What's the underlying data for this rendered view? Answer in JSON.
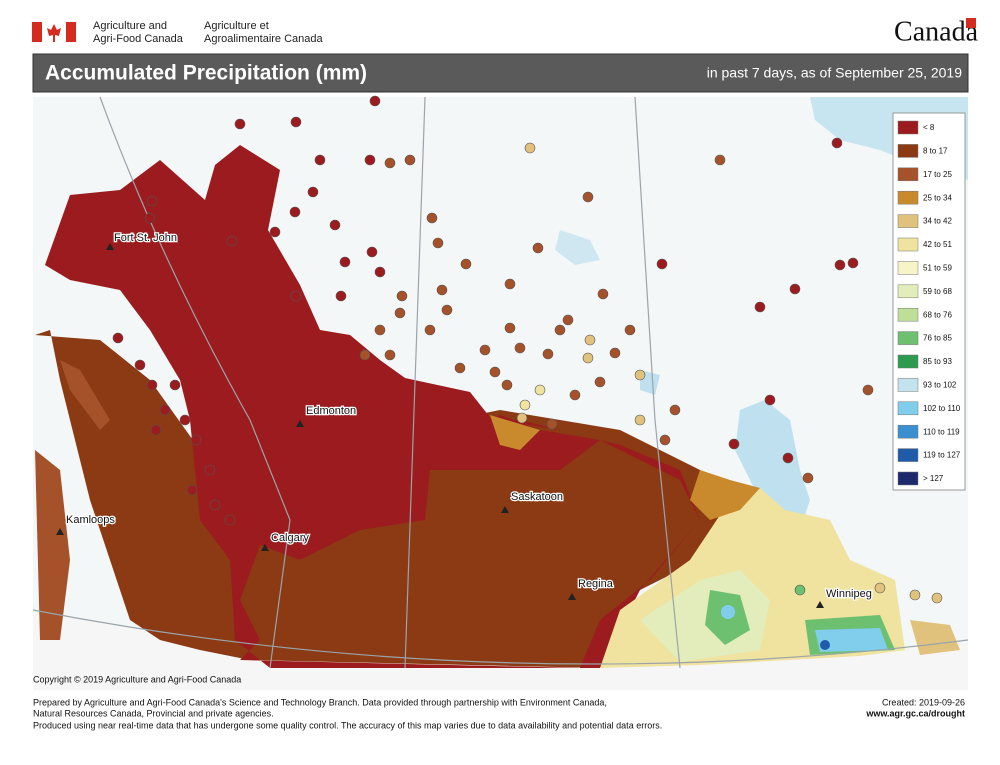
{
  "header": {
    "department_en": [
      "Agriculture and",
      "Agri-Food Canada"
    ],
    "department_fr": [
      "Agriculture et",
      "Agroalimentaire Canada"
    ],
    "wordmark": "Canada"
  },
  "title": "Accumulated Precipitation (mm)",
  "subtitle": "in past 7 days, as of September 25, 2019",
  "legend": {
    "items": [
      {
        "label": "< 8",
        "color": "#9b1b1f"
      },
      {
        "label": "8 to 17",
        "color": "#8b3a14"
      },
      {
        "label": "17 to 25",
        "color": "#a5522a"
      },
      {
        "label": "25 to 34",
        "color": "#c98a2e"
      },
      {
        "label": "34 to 42",
        "color": "#e0c27c"
      },
      {
        "label": "42 to 51",
        "color": "#efe39f"
      },
      {
        "label": "51 to 59",
        "color": "#f7f4c8"
      },
      {
        "label": "59 to 68",
        "color": "#e2edbb"
      },
      {
        "label": "68 to 76",
        "color": "#bddf98"
      },
      {
        "label": "76 to 85",
        "color": "#6cc070"
      },
      {
        "label": "85 to 93",
        "color": "#2e9a4e"
      },
      {
        "label": "93 to 102",
        "color": "#c2e4ee"
      },
      {
        "label": "102 to 110",
        "color": "#80cdec"
      },
      {
        "label": "110 to 119",
        "color": "#3a8fcf"
      },
      {
        "label": "119 to 127",
        "color": "#1f5ba8"
      },
      {
        "label": "> 127",
        "color": "#1c2a6b"
      }
    ]
  },
  "cities": [
    "Fort St. John",
    "Edmonton",
    "Saskatoon",
    "Kamloops",
    "Calgary",
    "Regina",
    "Winnipeg"
  ],
  "copyright": "Copyright © 2019 Agriculture and Agri-Food Canada",
  "footer": {
    "notes": [
      "Prepared by Agriculture and Agri-Food Canada's Science and Technology Branch. Data provided through partnership with Environment Canada,",
      "Natural Resources Canada, Provincial and private agencies.",
      "Produced using near real-time data that has undergone some quality control. The accuracy of this map varies due to data availability and potential data errors."
    ],
    "created": "Created: 2019-09-26",
    "url": "www.agr.gc.ca/drought"
  }
}
